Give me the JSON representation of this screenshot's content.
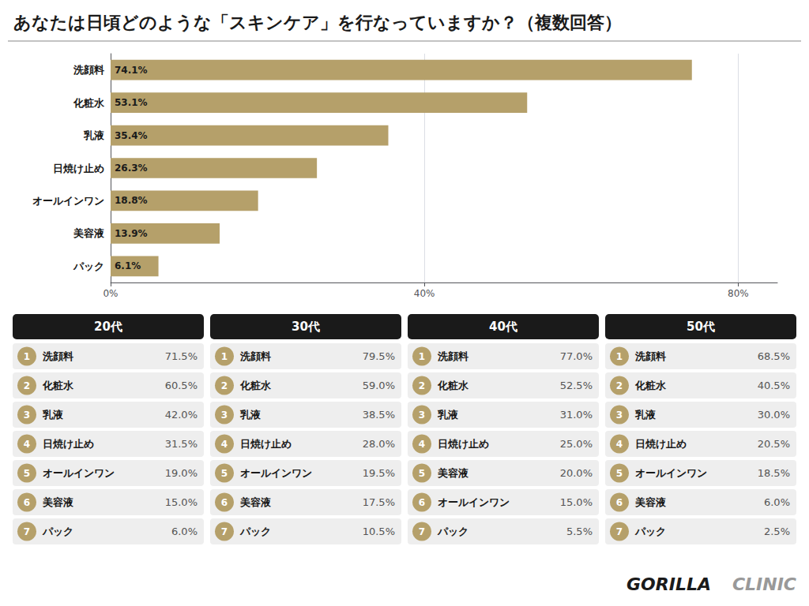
{
  "chart_data": [
    {
      "type": "bar",
      "title": "あなたは日頃どのような「スキンケア」を行なっていますか？（複数回答）",
      "orientation": "horizontal",
      "categories": [
        "洗顔料",
        "化粧水",
        "乳液",
        "日焼け止め",
        "オールインワン",
        "美容液",
        "パック"
      ],
      "values": [
        74.1,
        53.1,
        35.4,
        26.3,
        18.8,
        13.9,
        6.1
      ],
      "value_labels": [
        "74.1%",
        "53.1%",
        "35.4%",
        "26.3%",
        "18.8%",
        "13.9%",
        "6.1%"
      ],
      "data_labels": true,
      "color": "#B5A06A",
      "xlim": [
        0,
        85
      ],
      "xticks": [
        {
          "value": 0,
          "label": "0%"
        },
        {
          "value": 40,
          "label": "40%"
        },
        {
          "value": 80,
          "label": "80%"
        }
      ],
      "grid": true
    },
    {
      "type": "table",
      "color": "#B5A06A",
      "ranks": [
        1,
        2,
        3,
        4,
        5,
        6,
        7
      ],
      "series": [
        {
          "name": "20代",
          "categories": [
            "洗顔料",
            "化粧水",
            "乳液",
            "日焼け止め",
            "オールインワン",
            "美容液",
            "パック"
          ],
          "values": [
            71.5,
            60.5,
            42.0,
            31.5,
            19.0,
            15.0,
            6.0
          ],
          "value_labels": [
            "71.5%",
            "60.5%",
            "42.0%",
            "31.5%",
            "19.0%",
            "15.0%",
            "6.0%"
          ]
        },
        {
          "name": "30代",
          "categories": [
            "洗顔料",
            "化粧水",
            "乳液",
            "日焼け止め",
            "オールインワン",
            "美容液",
            "パック"
          ],
          "values": [
            79.5,
            59.0,
            38.5,
            28.0,
            19.5,
            17.5,
            10.5
          ],
          "value_labels": [
            "79.5%",
            "59.0%",
            "38.5%",
            "28.0%",
            "19.5%",
            "17.5%",
            "10.5%"
          ]
        },
        {
          "name": "40代",
          "categories": [
            "洗顔料",
            "化粧水",
            "乳液",
            "日焼け止め",
            "美容液",
            "オールインワン",
            "パック"
          ],
          "values": [
            77.0,
            52.5,
            31.0,
            25.0,
            20.0,
            15.0,
            5.5
          ],
          "value_labels": [
            "77.0%",
            "52.5%",
            "31.0%",
            "25.0%",
            "20.0%",
            "15.0%",
            "5.5%"
          ]
        },
        {
          "name": "50代",
          "categories": [
            "洗顔料",
            "化粧水",
            "乳液",
            "日焼け止め",
            "オールインワン",
            "美容液",
            "パック"
          ],
          "values": [
            68.5,
            40.5,
            30.0,
            20.5,
            18.5,
            6.0,
            2.5
          ],
          "value_labels": [
            "68.5%",
            "40.5%",
            "30.0%",
            "20.5%",
            "18.5%",
            "6.0%",
            "2.5%"
          ]
        }
      ],
      "annotations": [
        "GORILLA",
        "CLINIC"
      ]
    }
  ]
}
